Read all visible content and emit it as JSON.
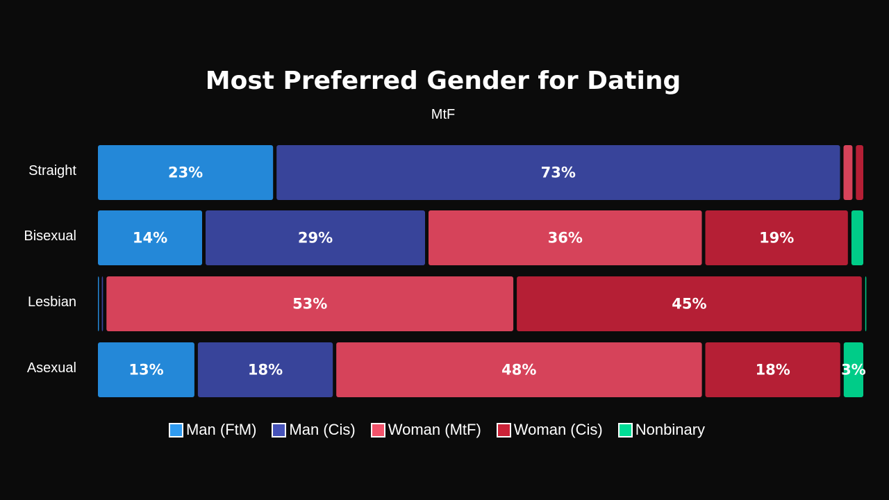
{
  "chart_data": {
    "type": "bar",
    "orientation": "horizontal",
    "stacked": true,
    "normalized": true,
    "title": "Most Preferred Gender for Dating",
    "subtitle": "MtF",
    "categories": [
      "Straight",
      "Bisexual",
      "Lesbian",
      "Asexual"
    ],
    "series": [
      {
        "name": "Man (FtM)",
        "color": "#2488d8",
        "legend_color": "#2f9bf0",
        "values": [
          23,
          14,
          0.5,
          13
        ],
        "labels": [
          "23%",
          "14%",
          "",
          "13%"
        ]
      },
      {
        "name": "Man (Cis)",
        "color": "#38449a",
        "legend_color": "#4652b8",
        "values": [
          73,
          29,
          0.6,
          18
        ],
        "labels": [
          "73%",
          "29%",
          "",
          "18%"
        ]
      },
      {
        "name": "Woman (MtF)",
        "color": "#d6435a",
        "legend_color": "#f2536b",
        "values": [
          1.6,
          36,
          53,
          48
        ],
        "labels": [
          "",
          "36%",
          "53%",
          "48%"
        ]
      },
      {
        "name": "Woman (Cis)",
        "color": "#b51f35",
        "legend_color": "#cc2238",
        "values": [
          1.4,
          19,
          45,
          18
        ],
        "labels": [
          "",
          "19%",
          "45%",
          "18%"
        ]
      },
      {
        "name": "Nonbinary",
        "color": "#00cc88",
        "legend_color": "#00dd96",
        "values": [
          0,
          2,
          0.2,
          3
        ],
        "labels": [
          "",
          "",
          "",
          "3%"
        ]
      }
    ],
    "legend_position": "bottom",
    "grid": false
  }
}
